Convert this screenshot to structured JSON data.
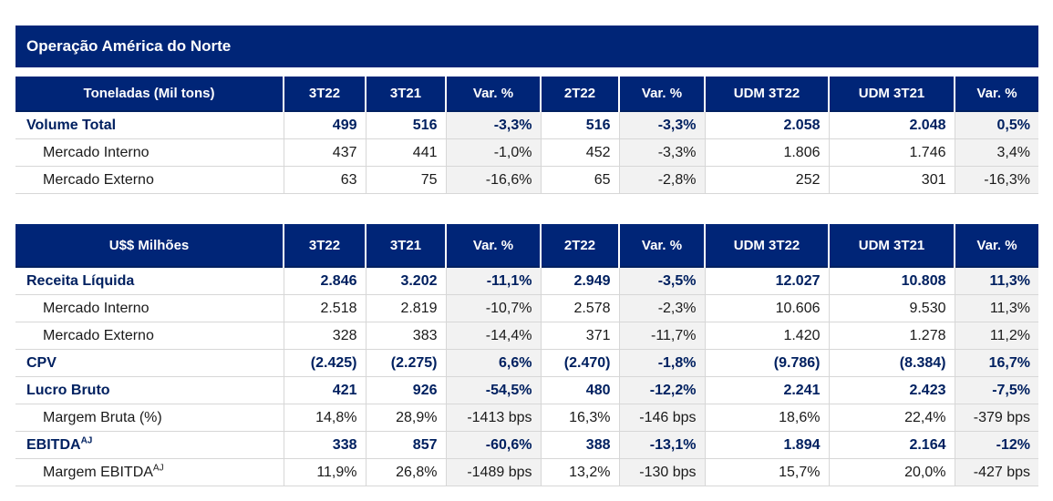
{
  "title": "Operação América do Norte",
  "columns": [
    "3T22",
    "3T21",
    "Var. %",
    "2T22",
    "Var. %",
    "UDM 3T22",
    "UDM 3T21",
    "Var. %"
  ],
  "var_columns": [
    2,
    4,
    7
  ],
  "tables": [
    {
      "header_label": "Toneladas (Mil tons)",
      "rows": [
        {
          "label": "Volume Total",
          "sup": "",
          "style": "bold",
          "cells": [
            "499",
            "516",
            "-3,3%",
            "516",
            "-3,3%",
            "2.058",
            "2.048",
            "0,5%"
          ]
        },
        {
          "label": "Mercado Interno",
          "sup": "",
          "style": "sub",
          "cells": [
            "437",
            "441",
            "-1,0%",
            "452",
            "-3,3%",
            "1.806",
            "1.746",
            "3,4%"
          ]
        },
        {
          "label": "Mercado Externo",
          "sup": "",
          "style": "sub",
          "cells": [
            "63",
            "75",
            "-16,6%",
            "65",
            "-2,8%",
            "252",
            "301",
            "-16,3%"
          ]
        }
      ]
    },
    {
      "header_label": "U$$ Milhões",
      "rows": [
        {
          "label": "Receita Líquida",
          "sup": "",
          "style": "bold",
          "cells": [
            "2.846",
            "3.202",
            "-11,1%",
            "2.949",
            "-3,5%",
            "12.027",
            "10.808",
            "11,3%"
          ]
        },
        {
          "label": "Mercado Interno",
          "sup": "",
          "style": "sub",
          "cells": [
            "2.518",
            "2.819",
            "-10,7%",
            "2.578",
            "-2,3%",
            "10.606",
            "9.530",
            "11,3%"
          ]
        },
        {
          "label": "Mercado Externo",
          "sup": "",
          "style": "sub",
          "cells": [
            "328",
            "383",
            "-14,4%",
            "371",
            "-11,7%",
            "1.420",
            "1.278",
            "11,2%"
          ]
        },
        {
          "label": "CPV",
          "sup": "",
          "style": "bold",
          "cells": [
            "(2.425)",
            "(2.275)",
            "6,6%",
            "(2.470)",
            "-1,8%",
            "(9.786)",
            "(8.384)",
            "16,7%"
          ]
        },
        {
          "label": "Lucro Bruto",
          "sup": "",
          "style": "bold",
          "cells": [
            "421",
            "926",
            "-54,5%",
            "480",
            "-12,2%",
            "2.241",
            "2.423",
            "-7,5%"
          ]
        },
        {
          "label": "Margem Bruta (%)",
          "sup": "",
          "style": "sub",
          "cells": [
            "14,8%",
            "28,9%",
            "-1413 bps",
            "16,3%",
            "-146 bps",
            "18,6%",
            "22,4%",
            "-379 bps"
          ]
        },
        {
          "label": "EBITDA",
          "sup": "AJ",
          "style": "bold",
          "cells": [
            "338",
            "857",
            "-60,6%",
            "388",
            "-13,1%",
            "1.894",
            "2.164",
            "-12%"
          ]
        },
        {
          "label": "Margem EBITDA",
          "sup": "AJ",
          "style": "sub",
          "cells": [
            "11,9%",
            "26,8%",
            "-1489 bps",
            "13,2%",
            "-130 bps",
            "15,7%",
            "20,0%",
            "-427 bps"
          ]
        }
      ]
    }
  ]
}
